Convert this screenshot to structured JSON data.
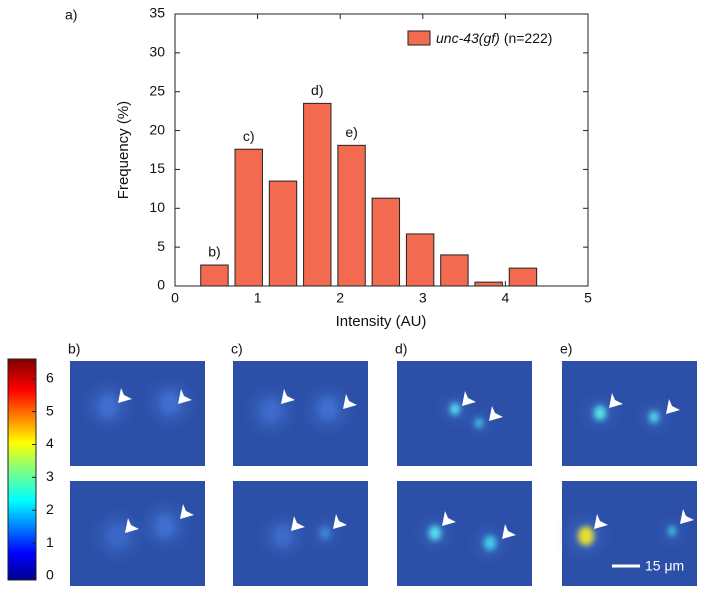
{
  "chart_data": {
    "type": "histogram",
    "panel_label": "a)",
    "xlabel": "Intensity (AU)",
    "ylabel": "Frequency (%)",
    "bins": [
      0.27,
      0.685,
      1.1,
      1.515,
      1.93,
      2.345,
      2.76,
      3.175,
      3.59,
      4.005,
      4.42
    ],
    "series": [
      {
        "name": "unc-43(gf)",
        "color": "#f26b50",
        "values": [
          2.7,
          17.6,
          13.5,
          23.5,
          18.1,
          11.3,
          6.7,
          4.0,
          0.5,
          2.3
        ]
      }
    ],
    "legend_note": "(n=222)",
    "legend": "upper right",
    "xlim": [
      0,
      5
    ],
    "xticks": [
      0,
      1,
      2,
      3,
      4,
      5
    ],
    "ylim": [
      0,
      35
    ],
    "yticks": [
      0,
      5,
      10,
      15,
      20,
      25,
      30,
      35
    ],
    "annotations": [
      {
        "label": "b)",
        "bar": 0
      },
      {
        "label": "c)",
        "bar": 1
      },
      {
        "label": "d)",
        "bar": 3
      },
      {
        "label": "e)",
        "bar": 4
      }
    ]
  },
  "colorbar": {
    "lim": [
      0,
      6.6
    ],
    "ticks": [
      0,
      1,
      2,
      3,
      4,
      5,
      6
    ]
  },
  "panels": [
    {
      "label": "b)"
    },
    {
      "label": "c)"
    },
    {
      "label": "d)"
    },
    {
      "label": "e)"
    }
  ],
  "scale_bar": "15 μm"
}
